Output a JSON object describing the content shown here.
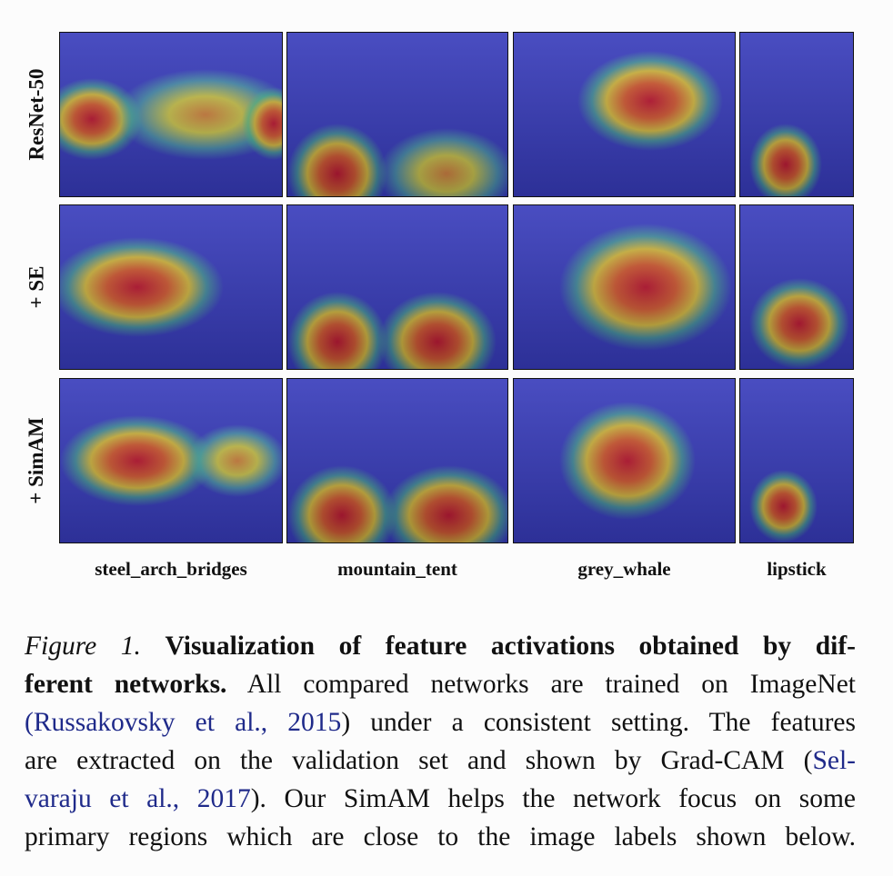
{
  "figure": {
    "row_labels": [
      "ResNet-50",
      "+ SE",
      "+ SimAM"
    ],
    "column_labels": [
      "steel_arch_bridges",
      "mountain_tent",
      "grey_whale",
      "lipstick"
    ],
    "heatmap_colormap": "jet"
  },
  "caption": {
    "figure_label": "Figure 1.",
    "title_line1": "Visualization of feature activations obtained by dif-",
    "title_line2": "ferent networks.",
    "line2_rest": "All compared networks are trained on ImageNet",
    "cite1": "(Russakovsky et al., 2015",
    "line3_rest": ") under a consistent setting. The features",
    "line4_text": "are extracted on the validation set and shown by Grad-CAM (",
    "cite2_part1": "Sel-",
    "cite2_part2": "varaju et al., 2017",
    "line5_rest": "). Our SimAM helps the network focus on some",
    "line6": "primary regions which are close to the image labels shown below."
  },
  "colors": {
    "citation": "#1f2a8a",
    "text": "#111111"
  }
}
